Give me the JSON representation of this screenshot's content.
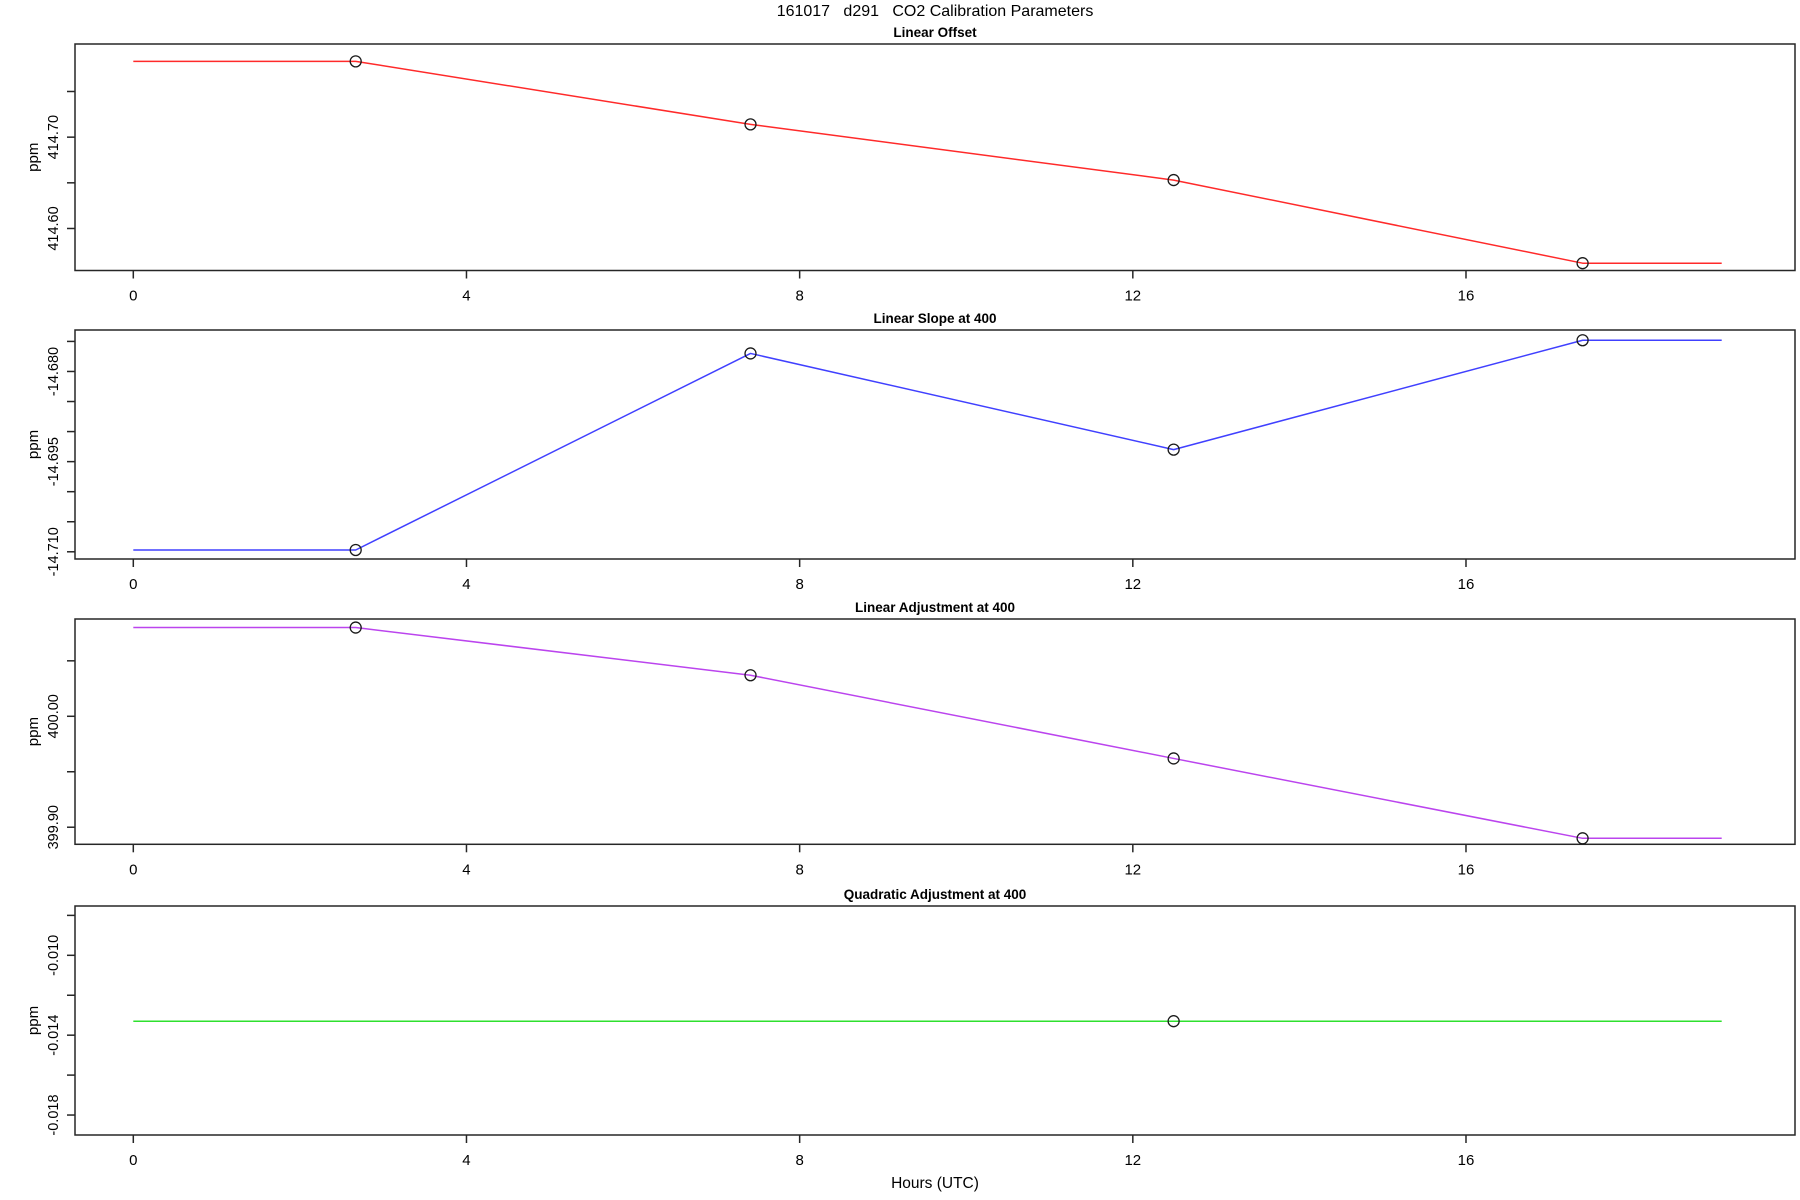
{
  "chart_data": {
    "type": "line",
    "title": "161017   d291   CO2 Calibration Parameters",
    "xlabel": "Hours (UTC)",
    "xlim": [
      -0.7,
      19.95
    ],
    "xticks": [
      0,
      4,
      8,
      12,
      16
    ],
    "grid": false,
    "legend": false,
    "marker": "open-circle",
    "panels": [
      {
        "title": "Linear Offset",
        "ylabel": "ppm",
        "color": "#ff2a2a",
        "ylim": [
          414.554,
          414.802
        ],
        "yticks": [
          {
            "v": 414.6,
            "label": "414.60"
          },
          {
            "v": 414.65,
            "label": ""
          },
          {
            "v": 414.7,
            "label": "414.70"
          },
          {
            "v": 414.75,
            "label": ""
          }
        ],
        "line": {
          "x": [
            0,
            2.67,
            7.41,
            12.49,
            17.4,
            19.07
          ],
          "y": [
            414.783,
            414.783,
            414.714,
            414.653,
            414.562,
            414.562
          ]
        },
        "markers": {
          "x": [
            2.67,
            7.41,
            12.49,
            17.4
          ],
          "y": [
            414.783,
            414.714,
            414.653,
            414.562
          ]
        }
      },
      {
        "title": "Linear Slope at 400",
        "ylabel": "ppm",
        "color": "#4040ff",
        "ylim": [
          -14.7112,
          -14.6731
        ],
        "yticks": [
          {
            "v": -14.71,
            "label": "-14.710"
          },
          {
            "v": -14.705,
            "label": ""
          },
          {
            "v": -14.7,
            "label": ""
          },
          {
            "v": -14.695,
            "label": "-14.695"
          },
          {
            "v": -14.69,
            "label": ""
          },
          {
            "v": -14.685,
            "label": ""
          },
          {
            "v": -14.68,
            "label": "-14.680"
          },
          {
            "v": -14.675,
            "label": ""
          }
        ],
        "line": {
          "x": [
            0,
            2.67,
            7.41,
            12.49,
            17.4,
            19.07
          ],
          "y": [
            -14.7097,
            -14.7097,
            -14.677,
            -14.693,
            -14.6748,
            -14.6748
          ]
        },
        "markers": {
          "x": [
            2.67,
            7.41,
            12.49,
            17.4
          ],
          "y": [
            -14.7097,
            -14.677,
            -14.693,
            -14.6748
          ]
        }
      },
      {
        "title": "Linear Adjustment at 400",
        "ylabel": "ppm",
        "color": "#bb44ee",
        "ylim": [
          399.8846,
          400.0877
        ],
        "yticks": [
          {
            "v": 399.9,
            "label": "399.90"
          },
          {
            "v": 399.95,
            "label": ""
          },
          {
            "v": 400.0,
            "label": "400.00"
          },
          {
            "v": 400.05,
            "label": ""
          }
        ],
        "line": {
          "x": [
            0,
            2.67,
            7.41,
            12.49,
            17.4,
            19.07
          ],
          "y": [
            400.08,
            400.08,
            400.037,
            399.962,
            399.89,
            399.89
          ]
        },
        "markers": {
          "x": [
            2.67,
            7.41,
            12.49,
            17.4
          ],
          "y": [
            400.08,
            400.037,
            399.962,
            399.89
          ]
        }
      },
      {
        "title": "Quadratic Adjustment at 400",
        "ylabel": "ppm",
        "color": "#2ee02e",
        "ylim": [
          -0.019,
          -0.00753
        ],
        "yticks": [
          {
            "v": -0.018,
            "label": "-0.018"
          },
          {
            "v": -0.016,
            "label": ""
          },
          {
            "v": -0.014,
            "label": "-0.014"
          },
          {
            "v": -0.012,
            "label": ""
          },
          {
            "v": -0.01,
            "label": "-0.010"
          },
          {
            "v": -0.008,
            "label": ""
          }
        ],
        "line": {
          "x": [
            0,
            19.07
          ],
          "y": [
            -0.0133,
            -0.0133
          ]
        },
        "markers": {
          "x": [
            12.49
          ],
          "y": [
            -0.0133
          ]
        }
      }
    ]
  }
}
